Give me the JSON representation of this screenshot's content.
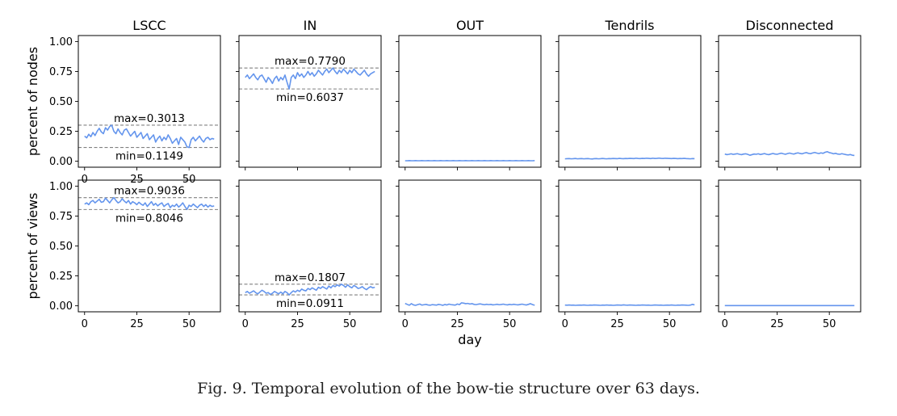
{
  "figure": {
    "caption": "Fig. 9.  Temporal evolution of the bow-tie structure over 63 days.",
    "line_color": "#6495ED",
    "ref_line_color": "#808080"
  },
  "chart_data": [
    {
      "type": "line",
      "title": "LSCC",
      "xlabel": "",
      "ylabel": "percent of nodes",
      "xlim": [
        -3,
        65
      ],
      "ylim": [
        -0.05,
        1.05
      ],
      "xticks": [
        "0",
        "25",
        "50"
      ],
      "yticks": [
        "0.00",
        "0.25",
        "0.50",
        "0.75",
        "1.00"
      ],
      "y": [
        0.21,
        0.195,
        0.225,
        0.205,
        0.24,
        0.215,
        0.25,
        0.275,
        0.245,
        0.23,
        0.28,
        0.26,
        0.29,
        0.301,
        0.25,
        0.23,
        0.27,
        0.24,
        0.22,
        0.26,
        0.27,
        0.24,
        0.21,
        0.23,
        0.25,
        0.2,
        0.22,
        0.24,
        0.19,
        0.21,
        0.23,
        0.18,
        0.2,
        0.22,
        0.16,
        0.19,
        0.21,
        0.17,
        0.2,
        0.18,
        0.22,
        0.19,
        0.15,
        0.17,
        0.19,
        0.14,
        0.2,
        0.18,
        0.16,
        0.12,
        0.115,
        0.18,
        0.2,
        0.17,
        0.19,
        0.21,
        0.18,
        0.16,
        0.19,
        0.2,
        0.18,
        0.19,
        0.185
      ],
      "max_label": "max=0.3013",
      "min_label": "min=0.1149",
      "max": 0.3013,
      "min": 0.1149
    },
    {
      "type": "line",
      "title": "IN",
      "xlabel": "",
      "ylabel": "",
      "xlim": [
        -3,
        65
      ],
      "ylim": [
        -0.05,
        1.05
      ],
      "xticks": [],
      "yticks": [],
      "y": [
        0.7,
        0.72,
        0.69,
        0.71,
        0.73,
        0.7,
        0.68,
        0.71,
        0.72,
        0.69,
        0.66,
        0.7,
        0.68,
        0.65,
        0.69,
        0.71,
        0.67,
        0.7,
        0.68,
        0.72,
        0.66,
        0.604,
        0.7,
        0.72,
        0.69,
        0.74,
        0.71,
        0.73,
        0.7,
        0.72,
        0.75,
        0.72,
        0.74,
        0.71,
        0.73,
        0.76,
        0.74,
        0.72,
        0.75,
        0.77,
        0.74,
        0.76,
        0.779,
        0.75,
        0.73,
        0.76,
        0.74,
        0.77,
        0.75,
        0.73,
        0.76,
        0.74,
        0.77,
        0.75,
        0.73,
        0.72,
        0.74,
        0.76,
        0.73,
        0.71,
        0.73,
        0.74,
        0.75
      ],
      "max_label": "max=0.7790",
      "min_label": "min=0.6037",
      "max": 0.779,
      "min": 0.6037
    },
    {
      "type": "line",
      "title": "OUT",
      "xlabel": "",
      "ylabel": "",
      "xlim": [
        -3,
        65
      ],
      "ylim": [
        -0.05,
        1.05
      ],
      "xticks": [],
      "yticks": [],
      "y": [
        0.004,
        0.004,
        0.005,
        0.004,
        0.004,
        0.005,
        0.004,
        0.004,
        0.005,
        0.004,
        0.004,
        0.005,
        0.004,
        0.004,
        0.005,
        0.004,
        0.004,
        0.005,
        0.004,
        0.004,
        0.005,
        0.004,
        0.004,
        0.005,
        0.004,
        0.004,
        0.005,
        0.004,
        0.004,
        0.005,
        0.004,
        0.004,
        0.005,
        0.004,
        0.004,
        0.005,
        0.004,
        0.004,
        0.005,
        0.004,
        0.004,
        0.005,
        0.004,
        0.004,
        0.005,
        0.004,
        0.004,
        0.005,
        0.004,
        0.004,
        0.005,
        0.004,
        0.004,
        0.005,
        0.004,
        0.004,
        0.005,
        0.004,
        0.004,
        0.005,
        0.004,
        0.004,
        0.005
      ]
    },
    {
      "type": "line",
      "title": "Tendrils",
      "xlabel": "",
      "ylabel": "",
      "xlim": [
        -3,
        65
      ],
      "ylim": [
        -0.05,
        1.05
      ],
      "xticks": [],
      "yticks": [],
      "y": [
        0.02,
        0.021,
        0.022,
        0.02,
        0.021,
        0.023,
        0.02,
        0.021,
        0.022,
        0.02,
        0.021,
        0.022,
        0.02,
        0.019,
        0.021,
        0.022,
        0.02,
        0.021,
        0.023,
        0.021,
        0.02,
        0.022,
        0.021,
        0.023,
        0.022,
        0.021,
        0.024,
        0.022,
        0.021,
        0.023,
        0.022,
        0.024,
        0.023,
        0.022,
        0.025,
        0.023,
        0.022,
        0.024,
        0.023,
        0.025,
        0.024,
        0.022,
        0.025,
        0.023,
        0.024,
        0.026,
        0.024,
        0.023,
        0.025,
        0.024,
        0.023,
        0.022,
        0.024,
        0.023,
        0.021,
        0.023,
        0.022,
        0.024,
        0.022,
        0.021,
        0.02,
        0.022,
        0.021
      ]
    },
    {
      "type": "line",
      "title": "Disconnected",
      "xlabel": "",
      "ylabel": "",
      "xlim": [
        -3,
        65
      ],
      "ylim": [
        -0.05,
        1.05
      ],
      "xticks": [],
      "yticks": [],
      "y": [
        0.06,
        0.055,
        0.058,
        0.062,
        0.057,
        0.06,
        0.063,
        0.058,
        0.055,
        0.06,
        0.062,
        0.057,
        0.05,
        0.055,
        0.06,
        0.058,
        0.062,
        0.056,
        0.06,
        0.064,
        0.058,
        0.055,
        0.06,
        0.065,
        0.06,
        0.058,
        0.063,
        0.067,
        0.062,
        0.058,
        0.064,
        0.068,
        0.063,
        0.06,
        0.066,
        0.07,
        0.065,
        0.062,
        0.068,
        0.072,
        0.066,
        0.063,
        0.069,
        0.073,
        0.068,
        0.064,
        0.07,
        0.066,
        0.075,
        0.08,
        0.072,
        0.068,
        0.062,
        0.066,
        0.06,
        0.058,
        0.063,
        0.059,
        0.055,
        0.052,
        0.056,
        0.05,
        0.048
      ]
    },
    {
      "type": "line",
      "title": "",
      "xlabel": "",
      "ylabel": "percent of views",
      "xlim": [
        -3,
        65
      ],
      "ylim": [
        -0.05,
        1.05
      ],
      "xticks": [
        "0",
        "25",
        "50"
      ],
      "yticks": [
        "0.00",
        "0.25",
        "0.50",
        "0.75",
        "1.00"
      ],
      "y": [
        0.85,
        0.86,
        0.845,
        0.87,
        0.88,
        0.86,
        0.875,
        0.89,
        0.865,
        0.87,
        0.9,
        0.88,
        0.86,
        0.885,
        0.904,
        0.88,
        0.86,
        0.87,
        0.895,
        0.875,
        0.86,
        0.88,
        0.85,
        0.87,
        0.86,
        0.845,
        0.865,
        0.85,
        0.84,
        0.86,
        0.83,
        0.85,
        0.87,
        0.84,
        0.855,
        0.835,
        0.85,
        0.86,
        0.83,
        0.845,
        0.855,
        0.82,
        0.84,
        0.83,
        0.85,
        0.825,
        0.84,
        0.86,
        0.83,
        0.805,
        0.84,
        0.83,
        0.85,
        0.835,
        0.82,
        0.84,
        0.85,
        0.83,
        0.845,
        0.825,
        0.84,
        0.83,
        0.835
      ],
      "max_label": "max=0.9036",
      "min_label": "min=0.8046",
      "max": 0.9036,
      "min": 0.8046
    },
    {
      "type": "line",
      "title": "",
      "xlabel": "",
      "ylabel": "",
      "xlim": [
        -3,
        65
      ],
      "ylim": [
        -0.05,
        1.05
      ],
      "xticks": [
        "0",
        "25",
        "50"
      ],
      "yticks": [],
      "y": [
        0.11,
        0.12,
        0.105,
        0.115,
        0.125,
        0.11,
        0.1,
        0.115,
        0.13,
        0.12,
        0.105,
        0.11,
        0.095,
        0.105,
        0.12,
        0.11,
        0.1,
        0.115,
        0.1,
        0.12,
        0.11,
        0.091,
        0.11,
        0.125,
        0.115,
        0.13,
        0.12,
        0.14,
        0.13,
        0.125,
        0.145,
        0.135,
        0.15,
        0.14,
        0.13,
        0.155,
        0.145,
        0.16,
        0.15,
        0.14,
        0.165,
        0.15,
        0.17,
        0.16,
        0.175,
        0.165,
        0.181,
        0.17,
        0.155,
        0.175,
        0.16,
        0.15,
        0.17,
        0.16,
        0.145,
        0.15,
        0.16,
        0.145,
        0.135,
        0.15,
        0.16,
        0.15,
        0.155
      ],
      "max_label": "max=0.1807",
      "min_label": "min=0.0911",
      "max": 0.1807,
      "min": 0.0911
    },
    {
      "type": "line",
      "title": "",
      "xlabel": "day",
      "ylabel": "",
      "xlim": [
        -3,
        65
      ],
      "ylim": [
        -0.05,
        1.05
      ],
      "xticks": [
        "0",
        "25",
        "50"
      ],
      "yticks": [],
      "y": [
        0.02,
        0.012,
        0.005,
        0.018,
        0.008,
        0.004,
        0.01,
        0.015,
        0.006,
        0.009,
        0.012,
        0.007,
        0.005,
        0.01,
        0.008,
        0.006,
        0.012,
        0.009,
        0.004,
        0.011,
        0.007,
        0.014,
        0.01,
        0.008,
        0.006,
        0.015,
        0.01,
        0.025,
        0.022,
        0.018,
        0.02,
        0.015,
        0.018,
        0.012,
        0.01,
        0.014,
        0.016,
        0.012,
        0.009,
        0.013,
        0.01,
        0.012,
        0.008,
        0.01,
        0.013,
        0.009,
        0.011,
        0.014,
        0.01,
        0.008,
        0.012,
        0.009,
        0.013,
        0.01,
        0.008,
        0.011,
        0.014,
        0.01,
        0.007,
        0.012,
        0.018,
        0.01,
        0.005
      ]
    },
    {
      "type": "line",
      "title": "",
      "xlabel": "",
      "ylabel": "",
      "xlim": [
        -3,
        65
      ],
      "ylim": [
        -0.05,
        1.05
      ],
      "xticks": [
        "0",
        "25",
        "50"
      ],
      "yticks": [],
      "y": [
        0.006,
        0.005,
        0.007,
        0.005,
        0.006,
        0.004,
        0.005,
        0.006,
        0.005,
        0.007,
        0.005,
        0.004,
        0.006,
        0.005,
        0.007,
        0.006,
        0.005,
        0.004,
        0.006,
        0.005,
        0.007,
        0.005,
        0.006,
        0.004,
        0.005,
        0.007,
        0.006,
        0.005,
        0.008,
        0.006,
        0.005,
        0.007,
        0.006,
        0.005,
        0.004,
        0.006,
        0.005,
        0.007,
        0.006,
        0.005,
        0.006,
        0.004,
        0.005,
        0.007,
        0.006,
        0.005,
        0.006,
        0.004,
        0.005,
        0.006,
        0.005,
        0.007,
        0.005,
        0.004,
        0.006,
        0.005,
        0.007,
        0.006,
        0.005,
        0.004,
        0.006,
        0.012,
        0.008
      ]
    },
    {
      "type": "line",
      "title": "",
      "xlabel": "",
      "ylabel": "",
      "xlim": [
        -3,
        65
      ],
      "ylim": [
        -0.05,
        1.05
      ],
      "xticks": [
        "0",
        "25",
        "50"
      ],
      "yticks": [],
      "y": [
        0.002,
        0.002,
        0.002,
        0.002,
        0.002,
        0.002,
        0.002,
        0.002,
        0.002,
        0.002,
        0.002,
        0.002,
        0.002,
        0.002,
        0.002,
        0.002,
        0.002,
        0.002,
        0.002,
        0.002,
        0.002,
        0.002,
        0.002,
        0.002,
        0.002,
        0.002,
        0.002,
        0.002,
        0.002,
        0.002,
        0.002,
        0.002,
        0.002,
        0.002,
        0.002,
        0.002,
        0.002,
        0.002,
        0.002,
        0.002,
        0.002,
        0.002,
        0.002,
        0.002,
        0.002,
        0.002,
        0.002,
        0.002,
        0.002,
        0.002,
        0.002,
        0.002,
        0.002,
        0.002,
        0.002,
        0.002,
        0.002,
        0.002,
        0.002,
        0.002,
        0.002,
        0.002,
        0.002
      ]
    }
  ]
}
